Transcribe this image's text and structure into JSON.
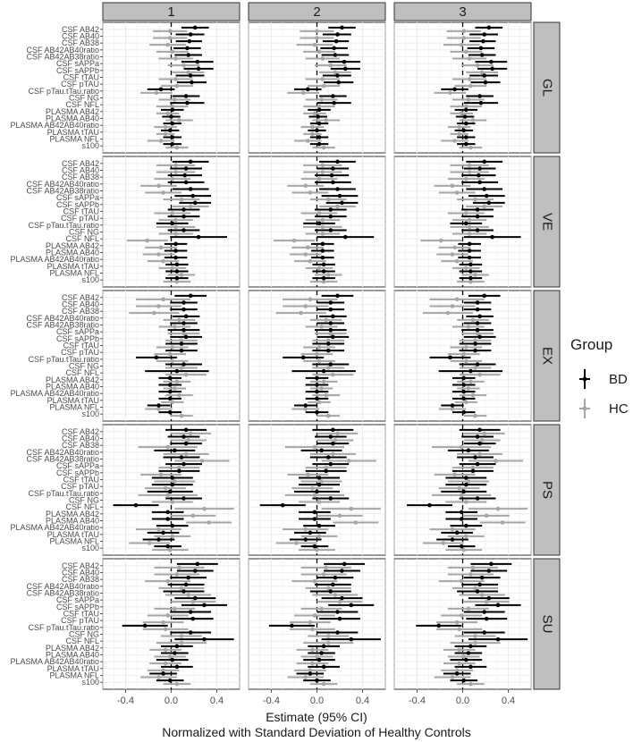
{
  "chart_data": {
    "type": "forest",
    "title": "",
    "xlabel": "Estimate (95% CI)",
    "xlabel2": "Normalized with Standard Deviation of Healthy Controls",
    "xlim": [
      -0.6,
      0.6
    ],
    "xticks": [
      "-0.4",
      "0.0",
      "0.4"
    ],
    "columns": [
      "1",
      "2",
      "3"
    ],
    "rows": [
      "GL",
      "VE",
      "EX",
      "PS",
      "SU"
    ],
    "variables": [
      "CSF AB42",
      "CSF AB40",
      "CSF AB38",
      "CSF AB42AB40ratio",
      "CSF AB42AB38ratio",
      "CSF sAPPa",
      "CSF sAPPb",
      "CSF tTAU",
      "CSF pTAU",
      "CSF pTau.tTau.ratio",
      "CSF NG",
      "CSF NFL",
      "PLASMA AB42",
      "PLASMA AB40",
      "PLASMA AB42AB40ratio",
      "PLASMA tTAU",
      "PLASMA NFL",
      "s100"
    ],
    "legend": {
      "title": "Group",
      "position": "right",
      "entries": [
        {
          "name": "BD",
          "color": "#000000"
        },
        {
          "name": "HC",
          "color": "#a6a6a6"
        }
      ]
    },
    "panels": {
      "GL": {
        "BD": [
          [
            0.22,
            0.1,
            0.34
          ],
          [
            0.18,
            0.05,
            0.3
          ],
          [
            0.17,
            0.05,
            0.28
          ],
          [
            0.15,
            0.03,
            0.27
          ],
          [
            0.16,
            0.04,
            0.28
          ],
          [
            0.24,
            0.1,
            0.38
          ],
          [
            0.25,
            0.12,
            0.38
          ],
          [
            0.18,
            0.05,
            0.3
          ],
          [
            0.19,
            0.06,
            0.32
          ],
          [
            -0.08,
            -0.2,
            0.04
          ],
          [
            0.14,
            0.02,
            0.26
          ],
          [
            0.15,
            0.0,
            0.3
          ],
          [
            0.02,
            -0.08,
            0.12
          ],
          [
            0.01,
            -0.07,
            0.09
          ],
          [
            0.02,
            -0.06,
            0.1
          ],
          [
            0.0,
            -0.08,
            0.08
          ],
          [
            0.02,
            -0.06,
            0.1
          ],
          [
            0.02,
            -0.06,
            0.1
          ]
        ],
        "HC": [
          [
            0.0,
            -0.15,
            0.15
          ],
          [
            0.0,
            -0.15,
            0.15
          ],
          [
            -0.02,
            -0.18,
            0.14
          ],
          [
            0.02,
            -0.12,
            0.16
          ],
          [
            0.05,
            -0.1,
            0.2
          ],
          [
            0.12,
            -0.02,
            0.26
          ],
          [
            0.16,
            0.02,
            0.3
          ],
          [
            0.05,
            -0.1,
            0.2
          ],
          [
            0.06,
            -0.08,
            0.2
          ],
          [
            -0.12,
            -0.26,
            0.02
          ],
          [
            0.04,
            -0.1,
            0.18
          ],
          [
            0.02,
            -0.12,
            0.16
          ],
          [
            -0.02,
            -0.12,
            0.08
          ],
          [
            0.08,
            -0.04,
            0.2
          ],
          [
            -0.04,
            -0.14,
            0.06
          ],
          [
            -0.04,
            -0.12,
            0.04
          ],
          [
            -0.08,
            -0.2,
            0.04
          ],
          [
            0.06,
            -0.04,
            0.16
          ]
        ]
      },
      "VE": {
        "BD": [
          [
            0.18,
            0.02,
            0.34
          ],
          [
            0.14,
            0.0,
            0.28
          ],
          [
            0.13,
            -0.02,
            0.28
          ],
          [
            0.14,
            -0.02,
            0.3
          ],
          [
            0.18,
            0.02,
            0.34
          ],
          [
            0.2,
            0.04,
            0.36
          ],
          [
            0.22,
            0.08,
            0.36
          ],
          [
            0.12,
            -0.02,
            0.26
          ],
          [
            0.12,
            -0.02,
            0.26
          ],
          [
            0.02,
            -0.12,
            0.16
          ],
          [
            0.12,
            -0.02,
            0.26
          ],
          [
            0.25,
            0.0,
            0.5
          ],
          [
            0.05,
            -0.05,
            0.15
          ],
          [
            0.05,
            -0.05,
            0.15
          ],
          [
            0.05,
            -0.05,
            0.15
          ],
          [
            0.06,
            -0.04,
            0.16
          ],
          [
            0.06,
            -0.04,
            0.16
          ],
          [
            0.06,
            -0.04,
            0.16
          ]
        ],
        "HC": [
          [
            0.05,
            -0.12,
            0.22
          ],
          [
            0.05,
            -0.12,
            0.22
          ],
          [
            0.02,
            -0.14,
            0.18
          ],
          [
            -0.1,
            -0.26,
            0.06
          ],
          [
            -0.06,
            -0.22,
            0.1
          ],
          [
            0.1,
            -0.06,
            0.26
          ],
          [
            0.18,
            0.02,
            0.34
          ],
          [
            0.02,
            -0.14,
            0.18
          ],
          [
            0.05,
            -0.1,
            0.2
          ],
          [
            0.05,
            -0.12,
            0.22
          ],
          [
            0.05,
            -0.1,
            0.2
          ],
          [
            -0.2,
            -0.38,
            -0.02
          ],
          [
            -0.08,
            -0.22,
            0.06
          ],
          [
            -0.1,
            -0.24,
            0.04
          ],
          [
            -0.06,
            -0.2,
            0.08
          ],
          [
            0.02,
            -0.1,
            0.14
          ],
          [
            0.1,
            -0.02,
            0.22
          ],
          [
            0.06,
            -0.06,
            0.18
          ]
        ]
      },
      "EX": {
        "BD": [
          [
            0.18,
            0.04,
            0.32
          ],
          [
            0.12,
            0.0,
            0.24
          ],
          [
            0.12,
            0.0,
            0.24
          ],
          [
            0.14,
            0.02,
            0.26
          ],
          [
            0.12,
            0.0,
            0.24
          ],
          [
            0.12,
            -0.02,
            0.26
          ],
          [
            0.14,
            0.0,
            0.28
          ],
          [
            0.1,
            -0.04,
            0.24
          ],
          [
            0.1,
            -0.04,
            0.24
          ],
          [
            -0.12,
            -0.3,
            0.06
          ],
          [
            0.12,
            -0.04,
            0.28
          ],
          [
            0.06,
            -0.22,
            0.34
          ],
          [
            0.0,
            -0.1,
            0.1
          ],
          [
            0.0,
            -0.1,
            0.1
          ],
          [
            0.0,
            -0.1,
            0.1
          ],
          [
            0.0,
            -0.1,
            0.1
          ],
          [
            -0.1,
            -0.2,
            0.0
          ],
          [
            0.0,
            -0.1,
            0.1
          ]
        ],
        "HC": [
          [
            -0.06,
            -0.3,
            0.18
          ],
          [
            -0.1,
            -0.3,
            0.1
          ],
          [
            -0.14,
            -0.36,
            0.08
          ],
          [
            0.08,
            -0.06,
            0.22
          ],
          [
            0.04,
            -0.1,
            0.18
          ],
          [
            0.12,
            -0.02,
            0.26
          ],
          [
            0.1,
            -0.04,
            0.24
          ],
          [
            0.02,
            -0.12,
            0.16
          ],
          [
            0.0,
            -0.14,
            0.14
          ],
          [
            0.02,
            -0.12,
            0.16
          ],
          [
            0.1,
            -0.04,
            0.24
          ],
          [
            0.14,
            -0.04,
            0.32
          ],
          [
            0.06,
            -0.06,
            0.18
          ],
          [
            0.04,
            -0.06,
            0.14
          ],
          [
            0.08,
            -0.04,
            0.2
          ],
          [
            0.02,
            -0.08,
            0.12
          ],
          [
            -0.1,
            -0.22,
            0.02
          ],
          [
            0.1,
            0.0,
            0.2
          ]
        ]
      },
      "PS": {
        "BD": [
          [
            0.14,
            -0.04,
            0.32
          ],
          [
            0.12,
            -0.02,
            0.26
          ],
          [
            0.14,
            0.0,
            0.28
          ],
          [
            0.04,
            -0.14,
            0.22
          ],
          [
            0.1,
            -0.06,
            0.26
          ],
          [
            0.12,
            -0.04,
            0.28
          ],
          [
            0.08,
            -0.1,
            0.26
          ],
          [
            0.02,
            -0.16,
            0.2
          ],
          [
            0.02,
            -0.16,
            0.2
          ],
          [
            0.0,
            -0.2,
            0.2
          ],
          [
            0.12,
            -0.04,
            0.28
          ],
          [
            -0.3,
            -0.5,
            -0.1
          ],
          [
            -0.02,
            -0.16,
            0.12
          ],
          [
            -0.02,
            -0.16,
            0.12
          ],
          [
            0.02,
            -0.12,
            0.16
          ],
          [
            -0.06,
            -0.2,
            0.08
          ],
          [
            -0.1,
            -0.24,
            0.04
          ],
          [
            -0.02,
            -0.14,
            0.1
          ]
        ],
        "HC": [
          [
            0.18,
            0.0,
            0.36
          ],
          [
            0.16,
            0.0,
            0.32
          ],
          [
            -0.02,
            -0.28,
            0.24
          ],
          [
            0.14,
            -0.06,
            0.34
          ],
          [
            0.28,
            0.04,
            0.52
          ],
          [
            0.08,
            -0.1,
            0.26
          ],
          [
            -0.08,
            -0.26,
            0.1
          ],
          [
            0.04,
            -0.14,
            0.22
          ],
          [
            -0.04,
            -0.22,
            0.14
          ],
          [
            -0.02,
            -0.28,
            0.24
          ],
          [
            0.02,
            -0.16,
            0.2
          ],
          [
            0.3,
            0.04,
            0.56
          ],
          [
            0.2,
            0.0,
            0.4
          ],
          [
            0.34,
            0.14,
            0.54
          ],
          [
            -0.1,
            -0.3,
            0.1
          ],
          [
            0.02,
            -0.14,
            0.18
          ],
          [
            -0.18,
            -0.36,
            0.0
          ],
          [
            0.0,
            -0.16,
            0.16
          ]
        ]
      },
      "SU": {
        "BD": [
          [
            0.24,
            0.06,
            0.42
          ],
          [
            0.22,
            0.06,
            0.38
          ],
          [
            0.16,
            0.0,
            0.32
          ],
          [
            0.14,
            -0.02,
            0.3
          ],
          [
            0.12,
            -0.06,
            0.3
          ],
          [
            0.22,
            0.04,
            0.4
          ],
          [
            0.3,
            0.1,
            0.5
          ],
          [
            0.18,
            0.0,
            0.36
          ],
          [
            0.2,
            0.02,
            0.38
          ],
          [
            -0.22,
            -0.42,
            -0.02
          ],
          [
            0.18,
            0.0,
            0.36
          ],
          [
            0.3,
            0.04,
            0.56
          ],
          [
            0.06,
            -0.08,
            0.2
          ],
          [
            0.04,
            -0.08,
            0.16
          ],
          [
            0.02,
            -0.12,
            0.16
          ],
          [
            0.06,
            -0.08,
            0.2
          ],
          [
            -0.06,
            -0.18,
            0.06
          ],
          [
            0.0,
            -0.12,
            0.12
          ]
        ],
        "HC": [
          [
            0.08,
            -0.14,
            0.3
          ],
          [
            0.06,
            -0.14,
            0.26
          ],
          [
            -0.02,
            -0.22,
            0.18
          ],
          [
            0.1,
            -0.1,
            0.3
          ],
          [
            0.16,
            -0.04,
            0.36
          ],
          [
            0.2,
            0.0,
            0.4
          ],
          [
            0.04,
            -0.14,
            0.22
          ],
          [
            -0.02,
            -0.2,
            0.16
          ],
          [
            -0.06,
            -0.24,
            0.12
          ],
          [
            -0.04,
            -0.24,
            0.16
          ],
          [
            0.1,
            -0.08,
            0.28
          ],
          [
            0.1,
            -0.12,
            0.32
          ],
          [
            -0.04,
            -0.18,
            0.1
          ],
          [
            0.0,
            -0.14,
            0.14
          ],
          [
            -0.04,
            -0.18,
            0.1
          ],
          [
            -0.06,
            -0.2,
            0.08
          ],
          [
            -0.1,
            -0.26,
            0.06
          ],
          [
            0.06,
            -0.06,
            0.18
          ]
        ]
      }
    }
  }
}
